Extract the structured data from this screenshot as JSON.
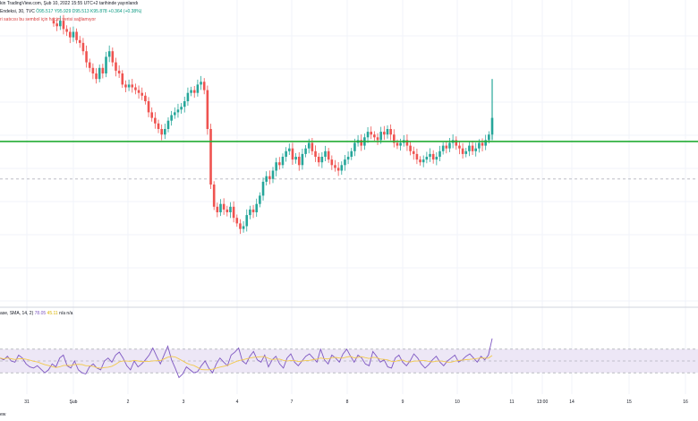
{
  "header": {
    "line1": "kin TradingView.com, Şub 10, 2022 15:55 UTC+2 tarihinde yayınlandı",
    "line2_prefix": "Endeksi, 30, TVC",
    "open": "Ö95.517",
    "high": "Y95.929",
    "low": "D95.513",
    "close": "K95.878",
    "change": "+0.364 (+0.38%)",
    "line3": "ri satıcısı bu sembol için hacim verisi sağlamıyor"
  },
  "indicator": {
    "name": "ase, SMA, 14, 2)",
    "value1": "78.05",
    "value2": "45.11",
    "trailing": "n/a n/a"
  },
  "footer": {
    "logo_text": "ew"
  },
  "colors": {
    "up": "#26a69a",
    "down": "#ef5350",
    "support_line": "#22ab34",
    "rsi_line": "#7e57c2",
    "rsi_ma": "#f2c94c",
    "rsi_band": "#ede7f6",
    "grid": "#f0f3fa",
    "text": "#131722"
  },
  "chart_data": [
    {
      "type": "candlestick",
      "x_tick_labels": [
        "31",
        "Şub",
        "2",
        "3",
        "4",
        "7",
        "8",
        "9",
        "10",
        "11",
        "13:00",
        "14",
        "15",
        "16"
      ],
      "horizontal_line_level_fraction": 0.555,
      "dashed_level_fraction": 0.42,
      "close_path": [
        0.98,
        0.97,
        0.99,
        0.96,
        0.95,
        0.93,
        0.95,
        0.92,
        0.91,
        0.88,
        0.84,
        0.82,
        0.8,
        0.78,
        0.82,
        0.8,
        0.86,
        0.88,
        0.84,
        0.81,
        0.8,
        0.76,
        0.75,
        0.76,
        0.75,
        0.74,
        0.73,
        0.72,
        0.7,
        0.66,
        0.64,
        0.62,
        0.6,
        0.58,
        0.6,
        0.63,
        0.65,
        0.66,
        0.67,
        0.68,
        0.7,
        0.73,
        0.74,
        0.73,
        0.76,
        0.77,
        0.74,
        0.6,
        0.4,
        0.32,
        0.3,
        0.33,
        0.31,
        0.3,
        0.32,
        0.28,
        0.26,
        0.24,
        0.25,
        0.29,
        0.31,
        0.3,
        0.33,
        0.36,
        0.41,
        0.43,
        0.42,
        0.45,
        0.48,
        0.47,
        0.5,
        0.52,
        0.53,
        0.49,
        0.5,
        0.47,
        0.51,
        0.53,
        0.55,
        0.52,
        0.5,
        0.48,
        0.5,
        0.52,
        0.49,
        0.47,
        0.46,
        0.45,
        0.47,
        0.49,
        0.5,
        0.52,
        0.55,
        0.56,
        0.54,
        0.57,
        0.59,
        0.58,
        0.57,
        0.56,
        0.59,
        0.58,
        0.6,
        0.58,
        0.55,
        0.54,
        0.55,
        0.56,
        0.54,
        0.52,
        0.51,
        0.49,
        0.48,
        0.49,
        0.5,
        0.51,
        0.49,
        0.5,
        0.52,
        0.54,
        0.53,
        0.55,
        0.56,
        0.54,
        0.53,
        0.51,
        0.52,
        0.54,
        0.52,
        0.53,
        0.55,
        0.54,
        0.56,
        0.58,
        0.64
      ]
    },
    {
      "type": "line",
      "name": "RSI",
      "ylim": [
        0,
        100
      ],
      "band": [
        30,
        70
      ],
      "rsi": [
        55,
        52,
        58,
        50,
        48,
        60,
        55,
        45,
        40,
        38,
        42,
        36,
        30,
        35,
        45,
        40,
        55,
        60,
        42,
        38,
        50,
        35,
        30,
        28,
        40,
        45,
        38,
        35,
        50,
        55,
        48,
        60,
        65,
        55,
        42,
        35,
        50,
        40,
        45,
        52,
        60,
        72,
        58,
        45,
        60,
        75,
        52,
        38,
        22,
        28,
        40,
        35,
        30,
        32,
        42,
        50,
        38,
        30,
        45,
        55,
        48,
        42,
        60,
        65,
        72,
        50,
        45,
        58,
        66,
        52,
        48,
        60,
        40,
        52,
        58,
        45,
        38,
        55,
        62,
        48,
        42,
        50,
        58,
        62,
        55,
        48,
        70,
        52,
        45,
        60,
        55,
        48,
        62,
        70,
        58,
        48,
        60,
        55,
        45,
        42,
        66,
        58,
        48,
        52,
        40,
        38,
        55,
        60,
        48,
        42,
        50,
        62,
        55,
        45,
        38,
        44,
        52,
        58,
        48,
        42,
        50,
        55,
        60,
        48,
        52,
        58,
        62,
        55,
        48,
        58,
        52,
        60,
        88
      ],
      "ma_window": 9
    }
  ]
}
